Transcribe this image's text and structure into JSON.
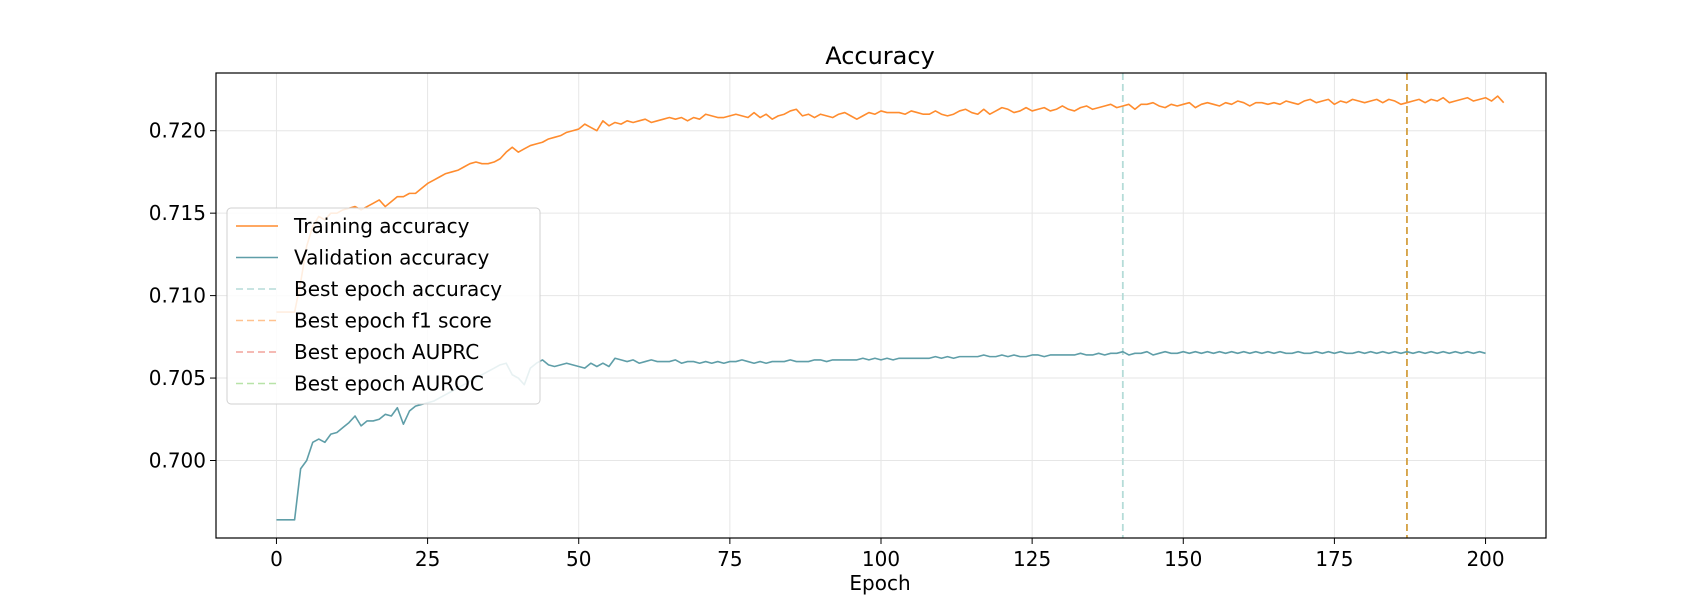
{
  "chart_data": {
    "type": "line",
    "title": "Accuracy",
    "xlabel": "Epoch",
    "ylabel": "",
    "xlim": [
      -10,
      210
    ],
    "ylim": [
      0.6953,
      0.7235
    ],
    "xticks": [
      0,
      25,
      50,
      75,
      100,
      125,
      150,
      175,
      200
    ],
    "yticks": [
      0.7,
      0.705,
      0.71,
      0.715,
      0.72
    ],
    "ytick_labels": [
      "0.700",
      "0.705",
      "0.710",
      "0.715",
      "0.720"
    ],
    "grid": true,
    "legend_position": "center-left",
    "series": [
      {
        "name": "Training accuracy",
        "color": "#ff8c2e",
        "style": "solid",
        "x_start": 0,
        "x_step": 1,
        "values": [
          0.709,
          0.709,
          0.709,
          0.709,
          0.7108,
          0.713,
          0.7142,
          0.7148,
          0.7146,
          0.715,
          0.715,
          0.7152,
          0.7153,
          0.7154,
          0.7152,
          0.7154,
          0.7156,
          0.7158,
          0.7154,
          0.7157,
          0.716,
          0.716,
          0.7162,
          0.7162,
          0.7165,
          0.7168,
          0.717,
          0.7172,
          0.7174,
          0.7175,
          0.7176,
          0.7178,
          0.718,
          0.7181,
          0.718,
          0.718,
          0.7181,
          0.7183,
          0.7187,
          0.719,
          0.7187,
          0.7189,
          0.7191,
          0.7192,
          0.7193,
          0.7195,
          0.7196,
          0.7197,
          0.7199,
          0.72,
          0.7201,
          0.7204,
          0.7202,
          0.72,
          0.7206,
          0.7203,
          0.7205,
          0.7204,
          0.7206,
          0.7205,
          0.7206,
          0.7207,
          0.7205,
          0.7206,
          0.7207,
          0.7208,
          0.7207,
          0.7208,
          0.7206,
          0.7208,
          0.7207,
          0.721,
          0.7209,
          0.7208,
          0.7208,
          0.7209,
          0.721,
          0.7209,
          0.7208,
          0.7211,
          0.7208,
          0.721,
          0.7207,
          0.7209,
          0.721,
          0.7212,
          0.7213,
          0.7209,
          0.721,
          0.7208,
          0.721,
          0.7209,
          0.7208,
          0.721,
          0.7211,
          0.7209,
          0.7207,
          0.7209,
          0.7211,
          0.721,
          0.7212,
          0.7211,
          0.7211,
          0.7211,
          0.721,
          0.7212,
          0.7211,
          0.721,
          0.721,
          0.7212,
          0.721,
          0.7209,
          0.721,
          0.7212,
          0.7213,
          0.7211,
          0.721,
          0.7213,
          0.721,
          0.7212,
          0.7214,
          0.7213,
          0.7211,
          0.7212,
          0.7214,
          0.7212,
          0.7213,
          0.7214,
          0.7212,
          0.7213,
          0.7215,
          0.7213,
          0.7212,
          0.7214,
          0.7215,
          0.7213,
          0.7214,
          0.7215,
          0.7216,
          0.7214,
          0.7215,
          0.7216,
          0.7213,
          0.7216,
          0.7216,
          0.7217,
          0.7215,
          0.7214,
          0.7216,
          0.7215,
          0.7216,
          0.7217,
          0.7214,
          0.7216,
          0.7217,
          0.7216,
          0.7215,
          0.7217,
          0.7216,
          0.7218,
          0.7217,
          0.7215,
          0.7217,
          0.7217,
          0.7216,
          0.7217,
          0.7216,
          0.7218,
          0.7217,
          0.7216,
          0.7218,
          0.7219,
          0.7217,
          0.7218,
          0.7219,
          0.7216,
          0.7218,
          0.7217,
          0.7219,
          0.7218,
          0.7217,
          0.7218,
          0.7219,
          0.7217,
          0.7219,
          0.7218,
          0.7216,
          0.7217,
          0.7218,
          0.7219,
          0.7217,
          0.7219,
          0.7218,
          0.722,
          0.7217,
          0.7218,
          0.7219,
          0.722,
          0.7218,
          0.7219,
          0.722,
          0.7218,
          0.7221,
          0.7217
        ]
      },
      {
        "name": "Validation accuracy",
        "color": "#5f9ea8",
        "style": "solid",
        "x_start": 0,
        "x_step": 1,
        "values": [
          0.6964,
          0.6964,
          0.6964,
          0.6964,
          0.6995,
          0.7,
          0.7011,
          0.7013,
          0.7011,
          0.7016,
          0.7017,
          0.702,
          0.7023,
          0.7027,
          0.7021,
          0.7024,
          0.7024,
          0.7025,
          0.7028,
          0.7027,
          0.7032,
          0.7022,
          0.703,
          0.7033,
          0.7034,
          0.7035,
          0.7036,
          0.7038,
          0.704,
          0.7042,
          0.7044,
          0.7046,
          0.7048,
          0.705,
          0.7052,
          0.7054,
          0.7056,
          0.7058,
          0.7059,
          0.7052,
          0.705,
          0.7046,
          0.7056,
          0.7059,
          0.7061,
          0.7058,
          0.7057,
          0.7058,
          0.7059,
          0.7058,
          0.7057,
          0.7056,
          0.7059,
          0.7057,
          0.7059,
          0.7057,
          0.7062,
          0.7061,
          0.706,
          0.7061,
          0.7059,
          0.706,
          0.7061,
          0.706,
          0.706,
          0.706,
          0.7061,
          0.7059,
          0.706,
          0.706,
          0.7059,
          0.706,
          0.7059,
          0.706,
          0.7059,
          0.706,
          0.706,
          0.7061,
          0.706,
          0.7059,
          0.706,
          0.7059,
          0.706,
          0.706,
          0.706,
          0.7061,
          0.706,
          0.706,
          0.706,
          0.7061,
          0.7061,
          0.706,
          0.7061,
          0.7061,
          0.7061,
          0.7061,
          0.7061,
          0.7062,
          0.7061,
          0.7062,
          0.7061,
          0.7062,
          0.7061,
          0.7062,
          0.7062,
          0.7062,
          0.7062,
          0.7062,
          0.7062,
          0.7063,
          0.7062,
          0.7063,
          0.7062,
          0.7063,
          0.7063,
          0.7063,
          0.7063,
          0.7064,
          0.7063,
          0.7063,
          0.7064,
          0.7063,
          0.7064,
          0.7063,
          0.7063,
          0.7064,
          0.7064,
          0.7063,
          0.7064,
          0.7064,
          0.7064,
          0.7064,
          0.7064,
          0.7065,
          0.7064,
          0.7064,
          0.7065,
          0.7064,
          0.7065,
          0.7065,
          0.7066,
          0.7064,
          0.7065,
          0.7065,
          0.7066,
          0.7064,
          0.7065,
          0.7066,
          0.7065,
          0.7065,
          0.7066,
          0.7065,
          0.7066,
          0.7065,
          0.7066,
          0.7065,
          0.7066,
          0.7065,
          0.7066,
          0.7065,
          0.7066,
          0.7065,
          0.7066,
          0.7065,
          0.7066,
          0.7065,
          0.7066,
          0.7065,
          0.7065,
          0.7066,
          0.7065,
          0.7065,
          0.7066,
          0.7065,
          0.7066,
          0.7065,
          0.7066,
          0.7065,
          0.7065,
          0.7066,
          0.7065,
          0.7066,
          0.7065,
          0.7066,
          0.7065,
          0.7066,
          0.7065,
          0.7066,
          0.7065,
          0.7066,
          0.7065,
          0.7066,
          0.7065,
          0.7066,
          0.7065,
          0.7066,
          0.7065,
          0.7066,
          0.7065,
          0.7066,
          0.7065
        ]
      }
    ],
    "vlines": [
      {
        "name": "Best epoch accuracy",
        "x": 140,
        "color": "#b5dcd8",
        "style": "dashed",
        "show_line": true
      },
      {
        "name": "Best epoch f1 score",
        "x": 187,
        "color": "#ffc28f",
        "style": "dashed",
        "show_line": false
      },
      {
        "name": "Best epoch AUPRC",
        "x": 187,
        "color": "#f2a39b",
        "style": "dashed",
        "show_line": false
      },
      {
        "name": "Best epoch AUROC",
        "x": 187,
        "color": "#b8e3a8",
        "style": "dashed",
        "show_line": false
      },
      {
        "name": "",
        "x": 187,
        "color": "#d4a040",
        "style": "dashed",
        "show_line": true
      }
    ],
    "legend": [
      {
        "label": "Training accuracy",
        "color": "#ff8c2e",
        "style": "solid"
      },
      {
        "label": "Validation accuracy",
        "color": "#5f9ea8",
        "style": "solid"
      },
      {
        "label": "Best epoch accuracy",
        "color": "#b5dcd8",
        "style": "dashed"
      },
      {
        "label": "Best epoch f1 score",
        "color": "#ffc28f",
        "style": "dashed"
      },
      {
        "label": "Best epoch AUPRC",
        "color": "#f2a39b",
        "style": "dashed"
      },
      {
        "label": "Best epoch AUROC",
        "color": "#b8e3a8",
        "style": "dashed"
      }
    ]
  }
}
